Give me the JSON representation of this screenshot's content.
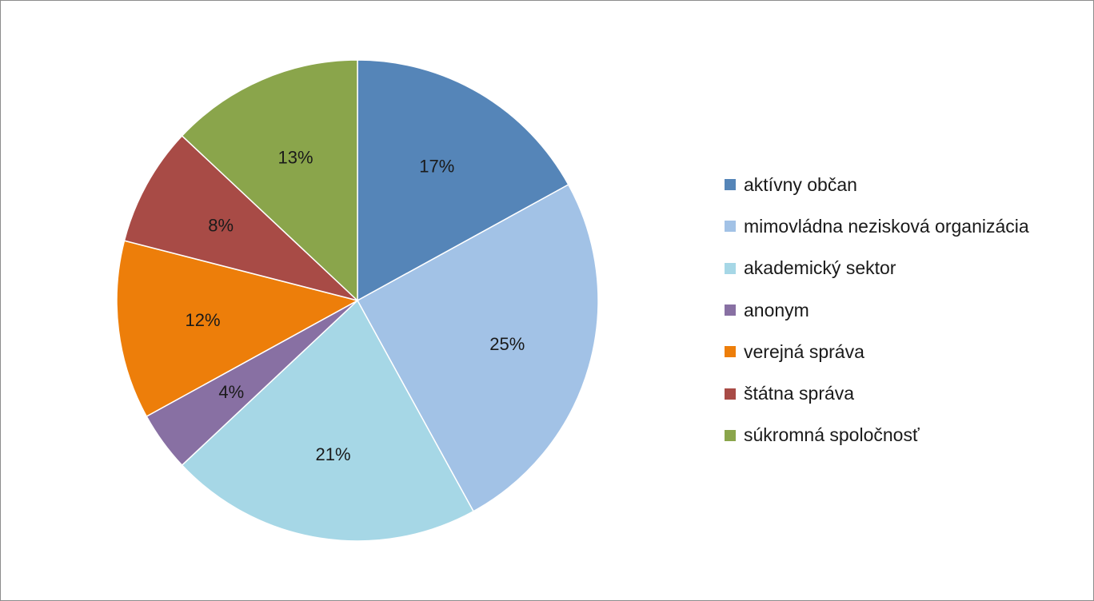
{
  "chart_data": {
    "type": "pie",
    "title": "",
    "categories": [
      "aktívny občan",
      "mimovládna nezisková organizácia",
      "akademický sektor",
      "anonym",
      "verejná správa",
      "štátna správa",
      "súkromná spoločnosť"
    ],
    "values": [
      17,
      25,
      21,
      4,
      12,
      8,
      13
    ],
    "data_labels": [
      "17%",
      "25%",
      "21%",
      "4%",
      "12%",
      "8%",
      "13%"
    ],
    "colors": [
      "#5585b8",
      "#a2c2e6",
      "#a6d7e6",
      "#8870a3",
      "#ed7e0a",
      "#a84b46",
      "#8aa54b"
    ],
    "legend_position": "right",
    "start_angle": "12 o'clock",
    "direction": "clockwise"
  }
}
